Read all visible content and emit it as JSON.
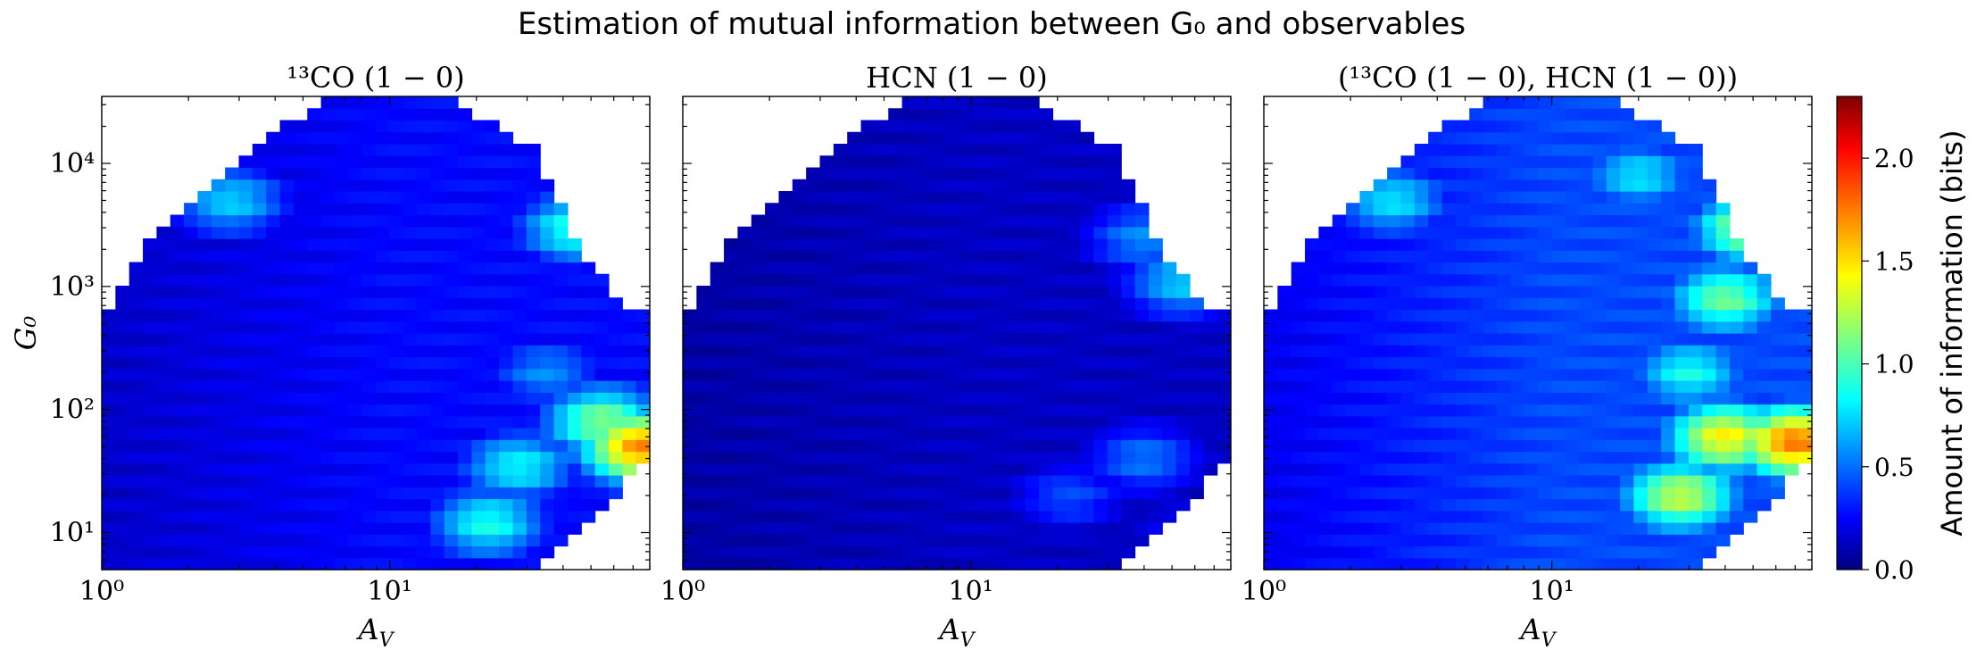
{
  "figure_title": "Estimation of mutual information between G₀ and observables",
  "colorbar": {
    "label": "Amount of information (bits)",
    "ticks": [
      "0.0",
      "0.5",
      "1.0",
      "1.5",
      "2.0"
    ],
    "range": [
      0.0,
      2.3
    ],
    "colormap": "jet",
    "colors": [
      "#00007f",
      "#0000ff",
      "#00ffff",
      "#ffff00",
      "#ff0000",
      "#7f0000"
    ]
  },
  "chart_data": [
    {
      "type": "heatmap",
      "title": "¹³CO (1 − 0)",
      "xlabel": "A_V",
      "ylabel": "G₀",
      "xscale": "log",
      "yscale": "log",
      "xlim": [
        1,
        80
      ],
      "ylim": [
        5,
        35000
      ],
      "xtick_labels": [
        "10⁰",
        "10¹"
      ],
      "ytick_labels": [
        "10¹",
        "10²",
        "10³",
        "10⁴"
      ],
      "hotspots": [
        {
          "av": 75,
          "g0": 50,
          "bits": 1.7
        },
        {
          "av": 55,
          "g0": 80,
          "bits": 1.15
        },
        {
          "av": 22,
          "g0": 12,
          "bits": 0.9
        },
        {
          "av": 28,
          "g0": 35,
          "bits": 0.85
        },
        {
          "av": 45,
          "g0": 3000,
          "bits": 0.95
        },
        {
          "av": 2.8,
          "g0": 5000,
          "bits": 0.75
        },
        {
          "av": 35,
          "g0": 200,
          "bits": 0.6
        }
      ],
      "background_bits": 0.3
    },
    {
      "type": "heatmap",
      "title": "HCN (1 − 0)",
      "xlabel": "A_V",
      "ylabel": "",
      "xscale": "log",
      "yscale": "log",
      "xlim": [
        1,
        80
      ],
      "ylim": [
        5,
        35000
      ],
      "xtick_labels": [
        "10⁰",
        "10¹"
      ],
      "ytick_labels": [],
      "hotspots": [
        {
          "av": 55,
          "g0": 1100,
          "bits": 0.75
        },
        {
          "av": 40,
          "g0": 2500,
          "bits": 0.6
        },
        {
          "av": 40,
          "g0": 40,
          "bits": 0.55
        },
        {
          "av": 22,
          "g0": 20,
          "bits": 0.45
        },
        {
          "av": 55,
          "g0": 10,
          "bits": 0.3
        }
      ],
      "background_bits": 0.15
    },
    {
      "type": "heatmap",
      "title": "(¹³CO (1 − 0), HCN (1 − 0))",
      "xlabel": "A_V",
      "ylabel": "",
      "xscale": "log",
      "yscale": "log",
      "xlim": [
        1,
        80
      ],
      "ylim": [
        5,
        35000
      ],
      "xtick_labels": [
        "10⁰",
        "10¹"
      ],
      "ytick_labels": [],
      "hotspots": [
        {
          "av": 70,
          "g0": 55,
          "bits": 1.75
        },
        {
          "av": 40,
          "g0": 60,
          "bits": 1.45
        },
        {
          "av": 28,
          "g0": 20,
          "bits": 1.3
        },
        {
          "av": 50,
          "g0": 3000,
          "bits": 1.3
        },
        {
          "av": 40,
          "g0": 800,
          "bits": 1.1
        },
        {
          "av": 20,
          "g0": 8000,
          "bits": 0.8
        },
        {
          "av": 2.8,
          "g0": 5000,
          "bits": 0.8
        },
        {
          "av": 30,
          "g0": 200,
          "bits": 0.9
        }
      ],
      "background_bits": 0.45
    }
  ]
}
